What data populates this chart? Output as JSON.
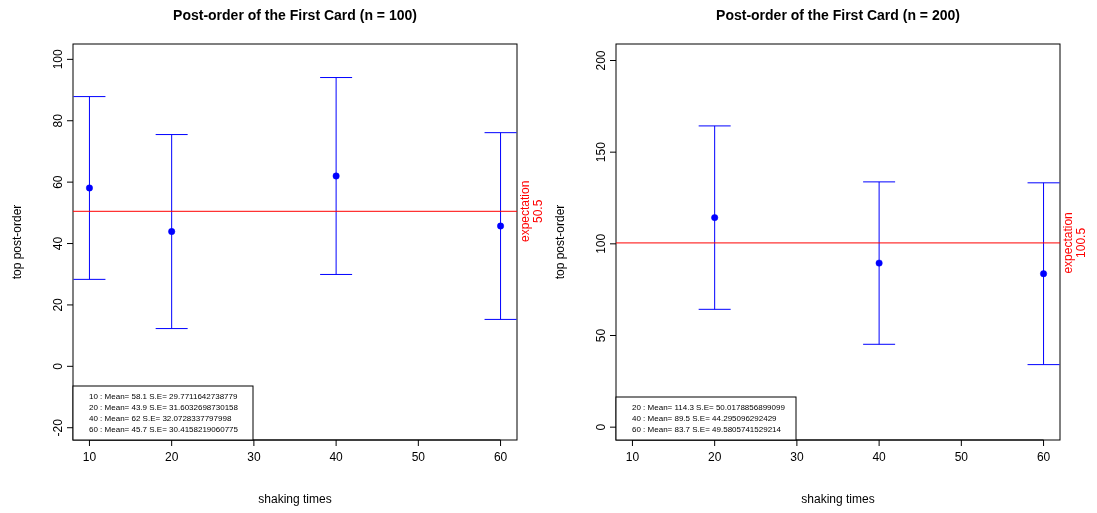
{
  "chart_data": [
    {
      "type": "scatter",
      "title": "Post-order of the First Card (n = 100)",
      "xlabel": "shaking times",
      "ylabel": "top post-order",
      "x": [
        10,
        20,
        40,
        60
      ],
      "series": [
        {
          "color": "#0000ff",
          "values": [
            58.1,
            43.9,
            62,
            45.7
          ],
          "errors": [
            29.7711642738779,
            31.6032698730158,
            32.0728337797998,
            30.4158219060775
          ]
        }
      ],
      "xlim": [
        8,
        62
      ],
      "xticks": [
        10,
        20,
        30,
        40,
        50,
        60
      ],
      "ylim": [
        -24,
        105
      ],
      "yticks": [
        -20,
        0,
        20,
        40,
        60,
        80,
        100
      ],
      "ref_lines": [
        {
          "axis": "y",
          "value": 50.5,
          "label": "expectation\n50.5",
          "color": "#ff0000"
        }
      ],
      "annotations": [
        "10 : Mean= 58.1  S.E= 29.7711642738779",
        "20 : Mean= 43.9  S.E= 31.6032698730158",
        "40 : Mean= 62  S.E= 32.0728337797998",
        "60 : Mean= 45.7  S.E= 30.4158219060775"
      ],
      "marker": "circle",
      "grid": false
    },
    {
      "type": "scatter",
      "title": "Post-order of the First Card (n = 200)",
      "xlabel": "shaking times",
      "ylabel": "top post-order",
      "x": [
        20,
        40,
        60
      ],
      "series": [
        {
          "color": "#0000ff",
          "values": [
            114.3,
            89.5,
            83.7
          ],
          "errors": [
            50.0178856899099,
            44.295096292429,
            49.5805741529214
          ]
        }
      ],
      "xlim": [
        8,
        62
      ],
      "xticks": [
        10,
        20,
        30,
        40,
        50,
        60
      ],
      "ylim": [
        -7,
        209
      ],
      "yticks": [
        0,
        50,
        100,
        150,
        200
      ],
      "ref_lines": [
        {
          "axis": "y",
          "value": 100.5,
          "label": "expectation\n100.5",
          "color": "#ff0000"
        }
      ],
      "annotations": [
        "20 : Mean= 114.3  S.E= 50.0178856899099",
        "40 : Mean= 89.5  S.E= 44.295096292429",
        "60 : Mean= 83.7  S.E= 49.5805741529214"
      ],
      "marker": "circle",
      "grid": false
    }
  ]
}
